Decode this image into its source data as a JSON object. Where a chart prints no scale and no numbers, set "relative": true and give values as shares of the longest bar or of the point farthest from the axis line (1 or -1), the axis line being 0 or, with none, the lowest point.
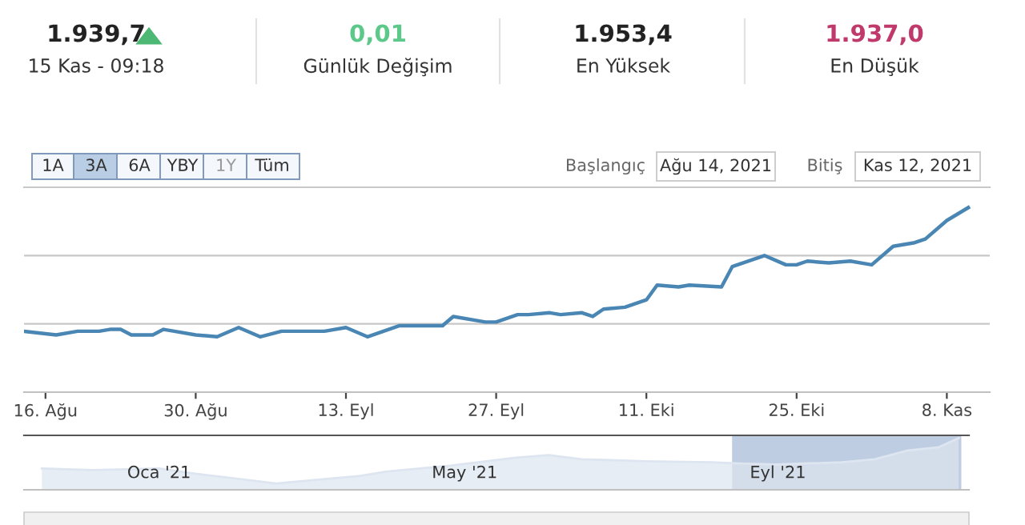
{
  "chart_data": [
    {
      "type": "line",
      "relative": true,
      "color": "#4a86b4",
      "ref_lines": [
        {
          "axis": "y",
          "value": 0.37,
          "color": "#c8c8c8"
        },
        {
          "axis": "y",
          "value": 0.74,
          "color": "#c8c8c8"
        }
      ],
      "annotations": [
        "1.939,7",
        "15 Kas - 09:18",
        "0,01",
        "Günlük Değişim",
        "1.953,4",
        "En Yüksek",
        "1.937,0",
        "En Düşük",
        "1A",
        "3A",
        "6A",
        "YBY",
        "1Y",
        "Tüm",
        "Başlangıç",
        "Ağu 14, 2021",
        "Bitiş",
        "Kas 12, 2021"
      ],
      "x": [
        "2021-08-14",
        "2021-08-17",
        "2021-08-19",
        "2021-08-21",
        "2021-08-22",
        "2021-08-23",
        "2021-08-24",
        "2021-08-26",
        "2021-08-27",
        "2021-08-28",
        "2021-08-30",
        "2021-09-01",
        "2021-09-03",
        "2021-09-05",
        "2021-09-07",
        "2021-09-11",
        "2021-09-13",
        "2021-09-15",
        "2021-09-18",
        "2021-09-22",
        "2021-09-23",
        "2021-09-26",
        "2021-09-27",
        "2021-09-29",
        "2021-09-30",
        "2021-10-02",
        "2021-10-03",
        "2021-10-05",
        "2021-10-06",
        "2021-10-07",
        "2021-10-09",
        "2021-10-11",
        "2021-10-12",
        "2021-10-14",
        "2021-10-15",
        "2021-10-18",
        "2021-10-19",
        "2021-10-22",
        "2021-10-24",
        "2021-10-25",
        "2021-10-26",
        "2021-10-28",
        "2021-10-30",
        "2021-11-01",
        "2021-11-03",
        "2021-11-05",
        "2021-11-06",
        "2021-11-08",
        "2021-11-10"
      ],
      "values": [
        0.33,
        0.31,
        0.33,
        0.33,
        0.34,
        0.34,
        0.31,
        0.31,
        0.34,
        0.33,
        0.31,
        0.3,
        0.35,
        0.3,
        0.33,
        0.33,
        0.35,
        0.3,
        0.36,
        0.36,
        0.41,
        0.38,
        0.38,
        0.42,
        0.42,
        0.43,
        0.42,
        0.43,
        0.41,
        0.45,
        0.46,
        0.5,
        0.58,
        0.57,
        0.58,
        0.57,
        0.68,
        0.74,
        0.69,
        0.69,
        0.71,
        0.7,
        0.71,
        0.69,
        0.79,
        0.81,
        0.83,
        0.93,
        1.0
      ],
      "xlim": [
        "2021-08-14",
        "2021-11-12"
      ],
      "xticks": [
        {
          "value": "2021-08-16",
          "label": "16. Ağu"
        },
        {
          "value": "2021-08-30",
          "label": "30. Ağu"
        },
        {
          "value": "2021-09-13",
          "label": "13. Eyl"
        },
        {
          "value": "2021-09-27",
          "label": "27. Eyl"
        },
        {
          "value": "2021-10-11",
          "label": "11. Eki"
        },
        {
          "value": "2021-10-25",
          "label": "25. Eki"
        },
        {
          "value": "2021-11-08",
          "label": "8. Kas"
        }
      ]
    },
    {
      "type": "area",
      "relative": true,
      "color": "#dde5f0",
      "x": [
        "2020-11-16",
        "2020-12-06",
        "2021-01-01",
        "2021-01-14",
        "2021-01-27",
        "2021-02-16",
        "2021-03-01",
        "2021-03-21",
        "2021-03-31",
        "2021-04-26",
        "2021-05-21",
        "2021-06-03",
        "2021-06-16",
        "2021-07-11",
        "2021-08-06",
        "2021-08-15",
        "2021-08-31",
        "2021-09-26",
        "2021-10-09",
        "2021-10-22",
        "2021-11-03",
        "2021-11-11"
      ],
      "values": [
        0.41,
        0.38,
        0.41,
        0.32,
        0.24,
        0.12,
        0.18,
        0.27,
        0.35,
        0.47,
        0.62,
        0.67,
        0.59,
        0.55,
        0.53,
        0.51,
        0.49,
        0.53,
        0.59,
        0.76,
        0.82,
        1.0
      ],
      "xlim": [
        "2020-11-09",
        "2021-11-15"
      ],
      "xticks": [
        {
          "value": "2021-01-01",
          "label": "Oca '21"
        },
        {
          "value": "2021-05-01",
          "label": "May '21"
        },
        {
          "value": "2021-09-01",
          "label": "Eyl '21"
        }
      ],
      "bands": [
        {
          "axis": "x",
          "from": "2021-08-14",
          "to": "2021-11-12",
          "color": "#a9bcd8"
        }
      ]
    }
  ]
}
